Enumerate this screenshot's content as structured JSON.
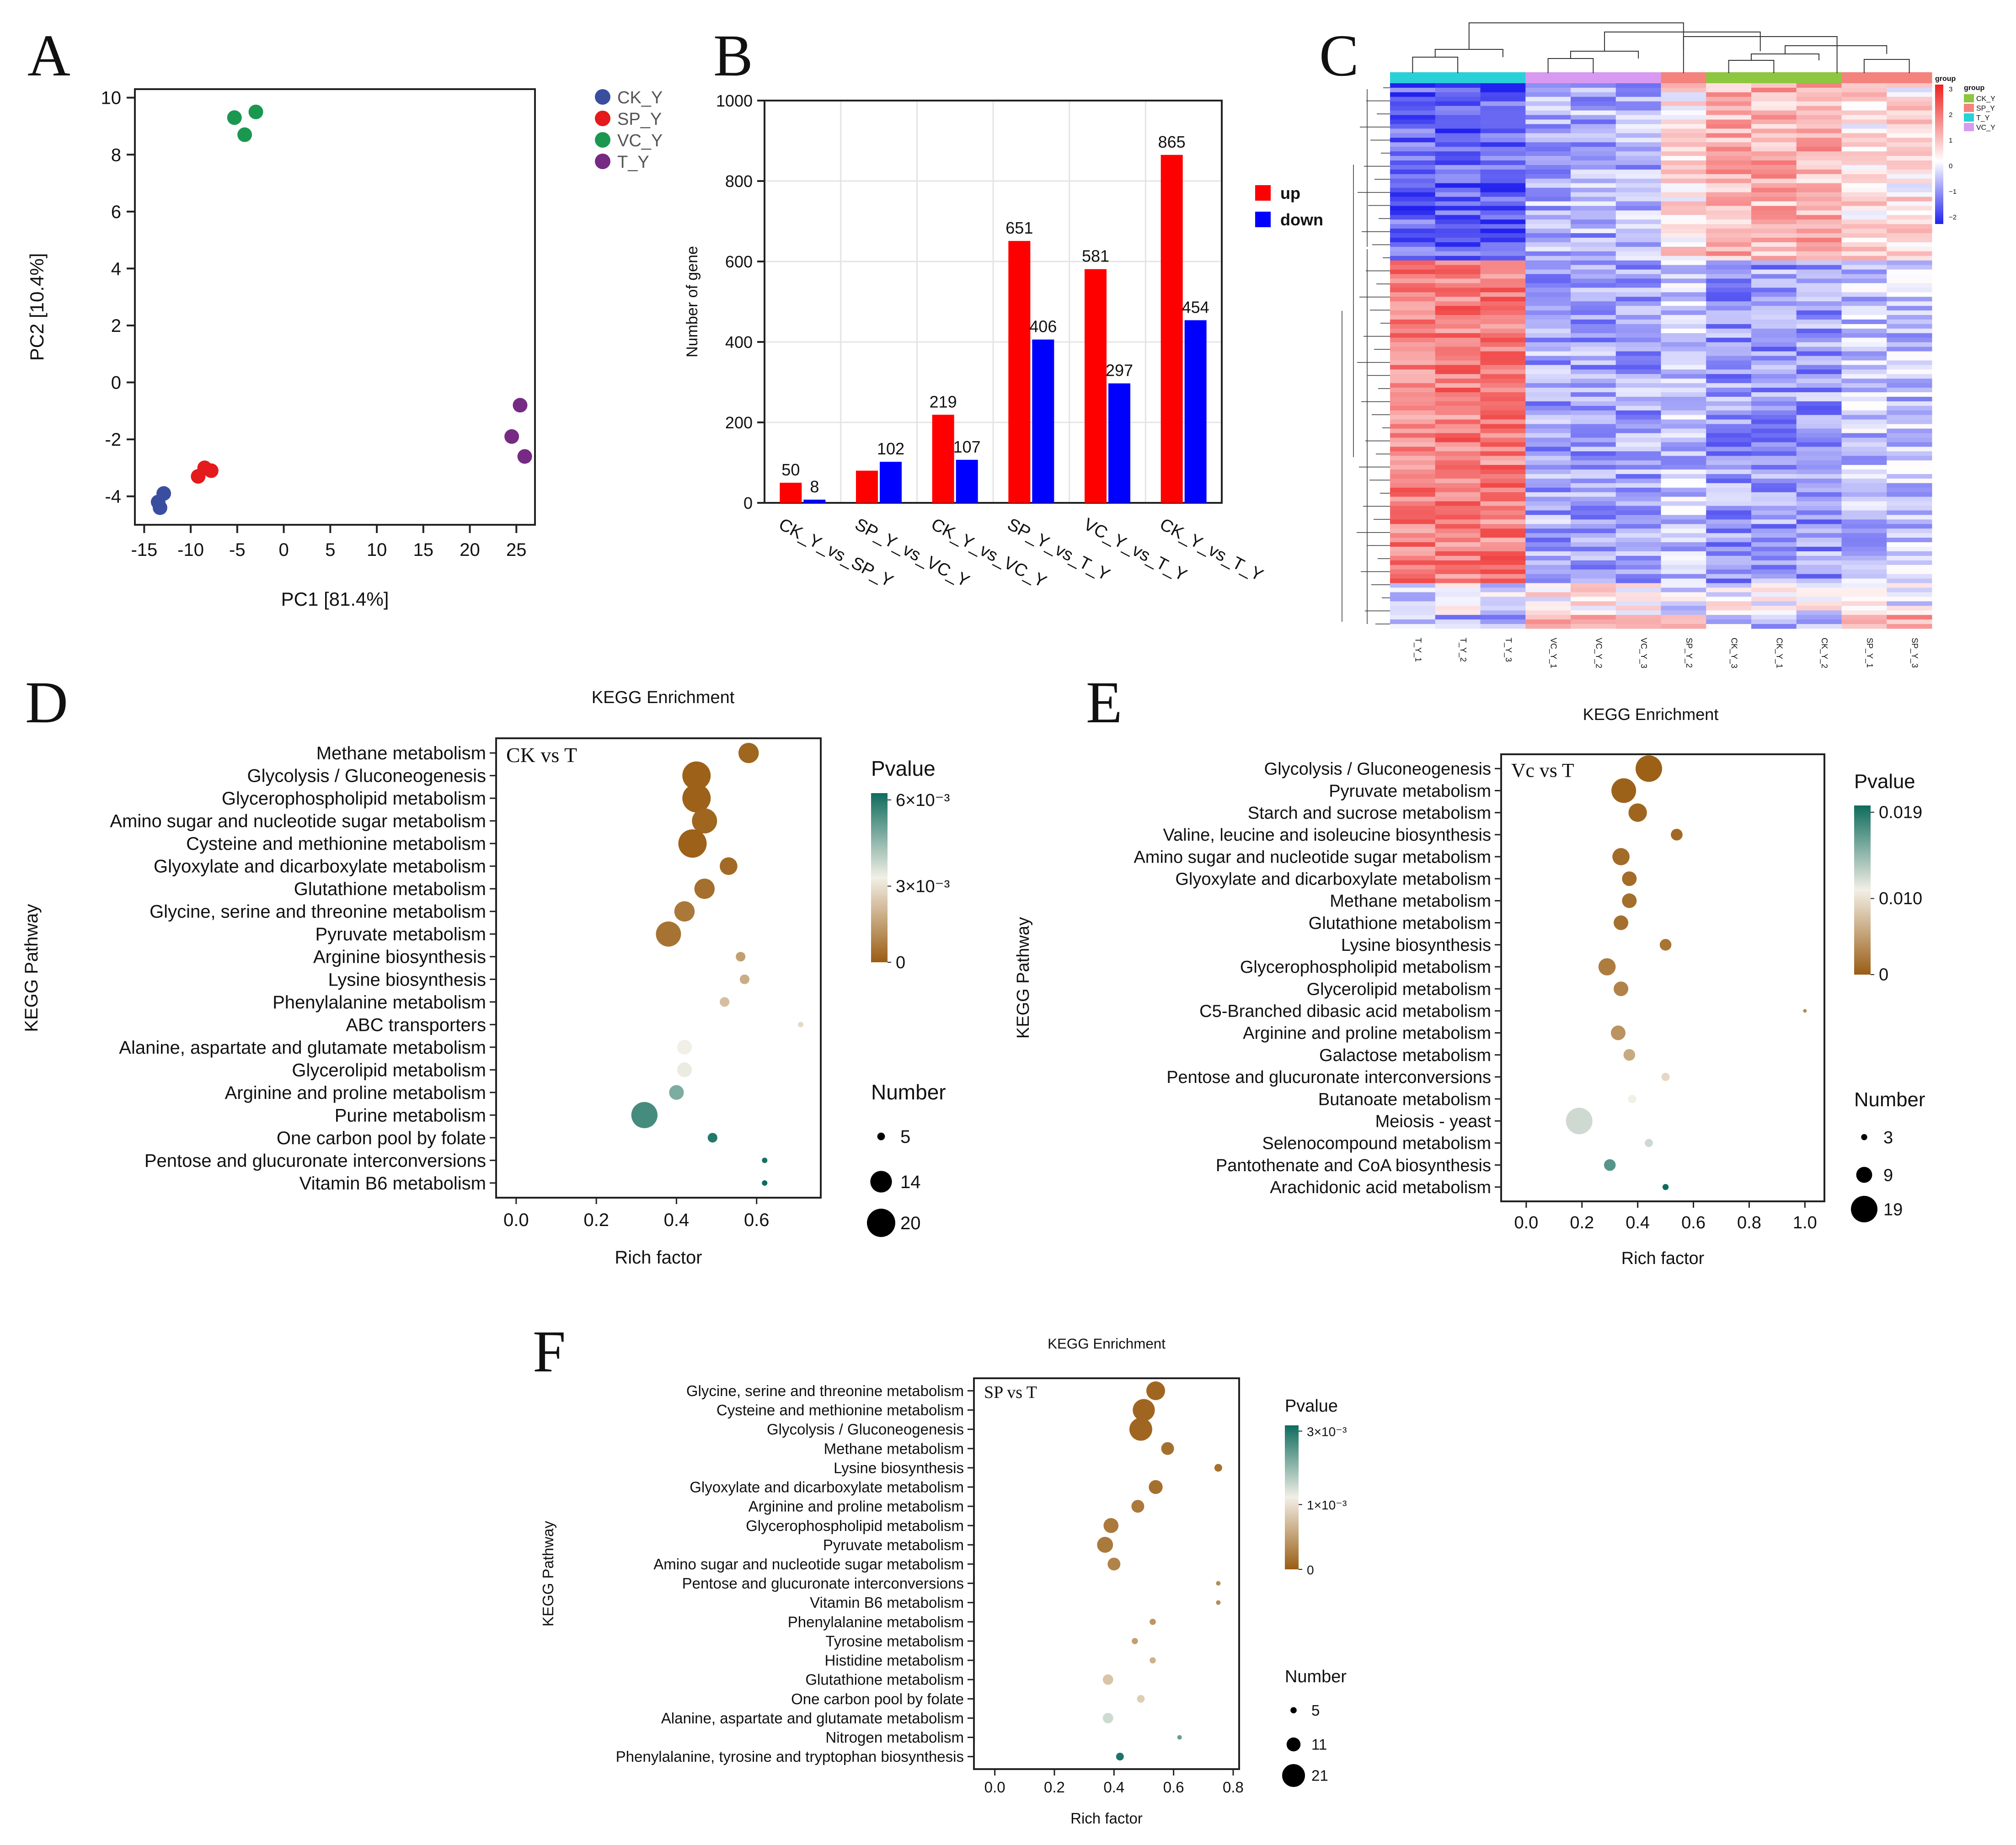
{
  "panel_labels": [
    "A",
    "B",
    "C",
    "D",
    "E",
    "F"
  ],
  "chart_data": [
    {
      "panel": "A",
      "type": "scatter",
      "xlabel": "PC1 [81.4%]",
      "ylabel": "PC2 [10.4%]",
      "xlim": [
        -16,
        27
      ],
      "ylim": [
        -5,
        10.3
      ],
      "xticks": [
        "-15",
        "-10",
        "-5",
        "0",
        "5",
        "10",
        "15",
        "20",
        "25"
      ],
      "yticks": [
        "-4",
        "-2",
        "0",
        "2",
        "4",
        "6",
        "8",
        "10"
      ],
      "legend_position": "top-right",
      "series": [
        {
          "name": "CK_Y",
          "color": "#3a4ea0",
          "points": [
            [
              -13.5,
              -4.2
            ],
            [
              -13.3,
              -4.4
            ],
            [
              -12.9,
              -3.9
            ]
          ]
        },
        {
          "name": "SP_Y",
          "color": "#e41a1c",
          "points": [
            [
              -9.2,
              -3.3
            ],
            [
              -8.5,
              -3.0
            ],
            [
              -7.8,
              -3.1
            ]
          ]
        },
        {
          "name": "VC_Y",
          "color": "#1a9850",
          "points": [
            [
              -5.3,
              9.3
            ],
            [
              -4.2,
              8.7
            ],
            [
              -3.0,
              9.5
            ]
          ]
        },
        {
          "name": "T_Y",
          "color": "#762a83",
          "points": [
            [
              24.5,
              -1.9
            ],
            [
              25.4,
              -0.8
            ],
            [
              25.9,
              -2.6
            ]
          ]
        }
      ]
    },
    {
      "panel": "B",
      "type": "bar",
      "ylabel": "Number of gene",
      "ylim": [
        0,
        1000
      ],
      "yticks": [
        "0",
        "200",
        "400",
        "600",
        "800",
        "1000"
      ],
      "categories": [
        "CK_Y_vs_SP_Y",
        "SP_Y_vs_VC_Y",
        "CK_Y_vs_VC_Y",
        "SP_Y_vs_T_Y",
        "VC_Y_vs_T_Y",
        "CK_Y_vs_T_Y"
      ],
      "legend_position": "right",
      "series": [
        {
          "name": "up",
          "color": "#ff0000",
          "values": [
            50,
            80,
            219,
            651,
            581,
            865
          ],
          "labels": [
            "50",
            "",
            "219",
            "651",
            "581",
            "865"
          ]
        },
        {
          "name": "down",
          "color": "#0000ff",
          "values": [
            8,
            102,
            107,
            406,
            297,
            454
          ],
          "labels": [
            "8",
            "102",
            "107",
            "406",
            "297",
            "454"
          ]
        }
      ]
    },
    {
      "panel": "C",
      "type": "heatmap",
      "columns": [
        "T_Y_1",
        "T_Y_2",
        "T_Y_3",
        "VC_Y_1",
        "VC_Y_2",
        "VC_Y_3",
        "SP_Y_2",
        "CK_Y_3",
        "CK_Y_1",
        "CK_Y_2",
        "SP_Y_1",
        "SP_Y_3"
      ],
      "column_groups": [
        "T_Y",
        "T_Y",
        "T_Y",
        "VC_Y",
        "VC_Y",
        "VC_Y",
        "SP_Y",
        "CK_Y",
        "CK_Y",
        "CK_Y",
        "SP_Y",
        "SP_Y"
      ],
      "group_legend_title": "group",
      "groups": [
        {
          "name": "CK_Y",
          "color": "#8dc63f"
        },
        {
          "name": "SP_Y",
          "color": "#f4837d"
        },
        {
          "name": "T_Y",
          "color": "#2ad0d8"
        },
        {
          "name": "VC_Y",
          "color": "#d89af0"
        }
      ],
      "color_scale_ticks": [
        "3",
        "2",
        "1",
        "0",
        "−1",
        "−2"
      ],
      "color_scale_range": [
        -2.4,
        3
      ],
      "colors": {
        "low": "#2222ee",
        "mid": "#ffffff",
        "high": "#ee2222"
      }
    },
    {
      "panel": "D",
      "type": "scatter",
      "title": "KEGG Enrichment",
      "annotation": "CK vs T",
      "xlabel": "Rich factor",
      "ylabel": "KEGG Pathway",
      "xlim": [
        -0.05,
        0.76
      ],
      "xticks": [
        "0.0",
        "0.2",
        "0.4",
        "0.6"
      ],
      "color_legend_title": "Pvalue",
      "color_ticks": [
        "6×10⁻³",
        "3×10⁻³",
        "0"
      ],
      "size_legend_title": "Number",
      "size_ticks": [
        "5",
        "14",
        "20"
      ],
      "pathways": [
        "Methane metabolism",
        "Glycolysis / Gluconeogenesis",
        "Glycerophospholipid metabolism",
        "Amino sugar and nucleotide sugar metabolism",
        "Cysteine and methionine metabolism",
        "Glyoxylate and dicarboxylate metabolism",
        "Glutathione metabolism",
        "Glycine, serine and threonine metabolism",
        "Pyruvate metabolism",
        "Arginine biosynthesis",
        "Lysine biosynthesis",
        "Phenylalanine metabolism",
        "ABC transporters",
        "Alanine, aspartate and glutamate metabolism",
        "Glycerolipid metabolism",
        "Arginine and proline metabolism",
        "Purine metabolism",
        "One carbon pool by folate",
        "Pentose and glucuronate interconversions",
        "Vitamin B6 metabolism"
      ],
      "rich_factor": [
        0.58,
        0.45,
        0.45,
        0.47,
        0.44,
        0.53,
        0.47,
        0.42,
        0.38,
        0.56,
        0.57,
        0.52,
        0.71,
        0.42,
        0.42,
        0.4,
        0.32,
        0.49,
        0.62,
        0.62
      ],
      "number": [
        13,
        20,
        20,
        17,
        20,
        11,
        13,
        13,
        17,
        6,
        6,
        6,
        4,
        9,
        9,
        9,
        18,
        6,
        4,
        4
      ],
      "pvalue": [
        0.0002,
        0.0001,
        0.0001,
        0.0002,
        0.0001,
        0.0003,
        0.0004,
        0.0006,
        0.0005,
        0.0015,
        0.0018,
        0.0022,
        0.0028,
        0.0033,
        0.0034,
        0.005,
        0.0058,
        0.0063,
        0.0065,
        0.0066
      ]
    },
    {
      "panel": "E",
      "type": "scatter",
      "title": "KEGG Enrichment",
      "annotation": "Vc vs T",
      "xlabel": "Rich factor",
      "ylabel": "KEGG Pathway",
      "xlim": [
        -0.09,
        1.07
      ],
      "xticks": [
        "0.0",
        "0.2",
        "0.4",
        "0.6",
        "0.8",
        "1.0"
      ],
      "color_legend_title": "Pvalue",
      "color_ticks": [
        "0.019",
        "0.010",
        "0"
      ],
      "size_legend_title": "Number",
      "size_ticks": [
        "3",
        "9",
        "19"
      ],
      "pathways": [
        "Glycolysis / Gluconeogenesis",
        "Pyruvate metabolism",
        "Starch and sucrose metabolism",
        "Valine, leucine and isoleucine biosynthesis",
        "Amino sugar and nucleotide sugar metabolism",
        "Glyoxylate and dicarboxylate metabolism",
        "Methane metabolism",
        "Glutathione metabolism",
        "Lysine biosynthesis",
        "Glycerophospholipid metabolism",
        "Glycerolipid metabolism",
        "C5-Branched dibasic acid metabolism",
        "Arginine and proline metabolism",
        "Galactose metabolism",
        "Pentose and glucuronate interconversions",
        "Butanoate metabolism",
        "Meiosis - yeast",
        "Selenocompound metabolism",
        "Pantothenate and CoA biosynthesis",
        "Arachidonic acid metabolism"
      ],
      "rich_factor": [
        0.44,
        0.35,
        0.4,
        0.54,
        0.34,
        0.37,
        0.37,
        0.34,
        0.5,
        0.29,
        0.34,
        1.0,
        0.33,
        0.37,
        0.5,
        0.38,
        0.19,
        0.44,
        0.3,
        0.5
      ],
      "number": [
        19,
        17,
        11,
        6,
        10,
        8,
        8,
        8,
        6,
        10,
        8,
        2,
        8,
        6,
        4,
        4,
        19,
        4,
        6,
        3
      ],
      "pvalue": [
        0.0002,
        0.0003,
        0.0005,
        0.0008,
        0.0009,
        0.001,
        0.0011,
        0.0012,
        0.0015,
        0.002,
        0.0025,
        0.003,
        0.0035,
        0.005,
        0.008,
        0.0095,
        0.011,
        0.011,
        0.016,
        0.019
      ]
    },
    {
      "panel": "F",
      "type": "scatter",
      "title": "KEGG Enrichment",
      "annotation": "SP vs T",
      "xlabel": "Rich factor",
      "ylabel": "KEGG Pathway",
      "xlim": [
        -0.07,
        0.82
      ],
      "xticks": [
        "0.0",
        "0.2",
        "0.4",
        "0.6",
        "0.8"
      ],
      "color_legend_title": "Pvalue",
      "color_ticks": [
        "3×10⁻³",
        "1×10⁻³",
        "0"
      ],
      "size_legend_title": "Number",
      "size_ticks": [
        "5",
        "11",
        "21"
      ],
      "pathways": [
        "Glycine, serine and threonine metabolism",
        "Cysteine and methionine metabolism",
        "Glycolysis / Gluconeogenesis",
        "Methane metabolism",
        "Lysine biosynthesis",
        "Glyoxylate and dicarboxylate metabolism",
        "Arginine and proline metabolism",
        "Glycerophospholipid metabolism",
        "Pyruvate metabolism",
        "Amino sugar and nucleotide sugar metabolism",
        "Pentose and glucuronate interconversions",
        "Vitamin B6 metabolism",
        "Phenylalanine metabolism",
        "Tyrosine metabolism",
        "Histidine metabolism",
        "Glutathione metabolism",
        "One carbon pool by folate",
        "Alanine, aspartate and glutamate metabolism",
        "Nitrogen metabolism",
        "Phenylalanine, tyrosine and tryptophan biosynthesis"
      ],
      "rich_factor": [
        0.54,
        0.5,
        0.49,
        0.58,
        0.75,
        0.54,
        0.48,
        0.39,
        0.37,
        0.4,
        0.75,
        0.75,
        0.53,
        0.47,
        0.53,
        0.38,
        0.49,
        0.38,
        0.62,
        0.42
      ],
      "number": [
        16,
        20,
        21,
        10,
        6,
        11,
        10,
        12,
        13,
        10,
        4,
        4,
        5,
        5,
        5,
        8,
        6,
        8,
        4,
        6
      ],
      "pvalue": [
        0.0001,
        0.0001,
        0.0001,
        0.0002,
        0.0002,
        0.0002,
        0.0003,
        0.0003,
        0.0003,
        0.0004,
        0.0005,
        0.0005,
        0.0006,
        0.0007,
        0.0009,
        0.0011,
        0.0012,
        0.0018,
        0.0025,
        0.003
      ]
    }
  ]
}
